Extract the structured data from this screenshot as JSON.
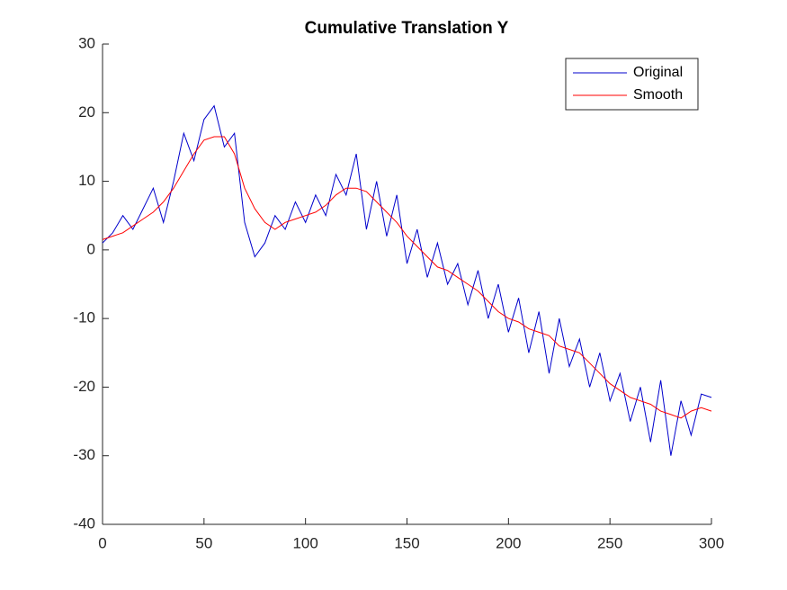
{
  "chart_data": {
    "type": "line",
    "title": "Cumulative Translation Y",
    "x": [
      0,
      5,
      10,
      15,
      20,
      25,
      30,
      35,
      40,
      45,
      50,
      55,
      60,
      65,
      70,
      75,
      80,
      85,
      90,
      95,
      100,
      105,
      110,
      115,
      120,
      125,
      130,
      135,
      140,
      145,
      150,
      155,
      160,
      165,
      170,
      175,
      180,
      185,
      190,
      195,
      200,
      205,
      210,
      215,
      220,
      225,
      230,
      235,
      240,
      245,
      250,
      255,
      260,
      265,
      270,
      275,
      280,
      285,
      290,
      295,
      300
    ],
    "series": [
      {
        "name": "Original",
        "color": "#0000cc",
        "values": [
          1,
          2.5,
          5,
          3,
          6,
          9,
          4,
          10,
          17,
          13,
          19,
          21,
          15,
          17,
          4,
          -1,
          1,
          5,
          3,
          7,
          4,
          8,
          5,
          11,
          8,
          14,
          3,
          10,
          2,
          8,
          -2,
          3,
          -4,
          1,
          -5,
          -2,
          -8,
          -3,
          -10,
          -5,
          -12,
          -7,
          -15,
          -9,
          -18,
          -10,
          -17,
          -13,
          -20,
          -15,
          -22,
          -18,
          -25,
          -20,
          -28,
          -19,
          -30,
          -22,
          -27,
          -21,
          -21.5
        ]
      },
      {
        "name": "Smooth",
        "color": "#ff0000",
        "values": [
          1.5,
          2,
          2.5,
          3.5,
          4.5,
          5.5,
          7,
          9,
          11.5,
          14,
          16,
          16.5,
          16.5,
          14,
          9,
          6,
          4,
          3,
          4,
          4.5,
          5,
          5.5,
          6.5,
          8,
          9,
          9,
          8.5,
          7,
          5.5,
          4,
          2,
          0.5,
          -1,
          -2.5,
          -3,
          -4,
          -5,
          -6,
          -7.5,
          -9,
          -10,
          -10.5,
          -11.5,
          -12,
          -12.5,
          -14,
          -14.5,
          -15,
          -16.5,
          -18,
          -19.5,
          -20.5,
          -21.5,
          -22,
          -22.5,
          -23.5,
          -24,
          -24.5,
          -23.5,
          -23,
          -23.5
        ]
      }
    ],
    "xlim": [
      0,
      300
    ],
    "xticks": [
      0,
      50,
      100,
      150,
      200,
      250,
      300
    ],
    "ylim": [
      -40,
      30
    ],
    "yticks": [
      -40,
      -30,
      -20,
      -10,
      0,
      10,
      20,
      30
    ],
    "legend": "upper right"
  }
}
